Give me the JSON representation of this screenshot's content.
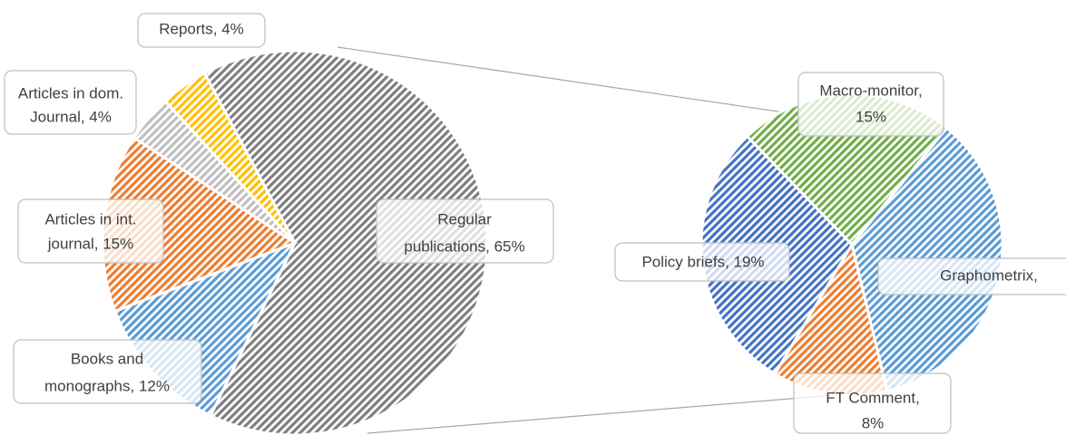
{
  "chart_data": [
    {
      "type": "pie",
      "categories": [
        [
          "Regular",
          "publications, 65%"
        ],
        [
          "Books and",
          "monographs, 12%"
        ],
        [
          "Articles in int.",
          "journal, 15%"
        ],
        [
          "Articles in dom.",
          "Journal, 4%"
        ],
        [
          "Reports, 4%"
        ]
      ],
      "values": [
        65,
        12,
        15,
        4,
        4
      ],
      "colors": [
        "#7f7f7f",
        "#5b9bd5",
        "#ed7d31",
        "#bfbfbf",
        "#ffc000"
      ]
    },
    {
      "type": "pie",
      "categories": [
        [
          "Macro-monitor,",
          "15%"
        ],
        [
          "Graphometrix,"
        ],
        [
          "FT Comment,",
          "8%"
        ],
        [
          "Policy briefs, 19%"
        ]
      ],
      "values": [
        15,
        23,
        8,
        19
      ],
      "colors": [
        "#70ad47",
        "#5b9bd5",
        "#ed7d31",
        "#4472c4"
      ]
    }
  ]
}
